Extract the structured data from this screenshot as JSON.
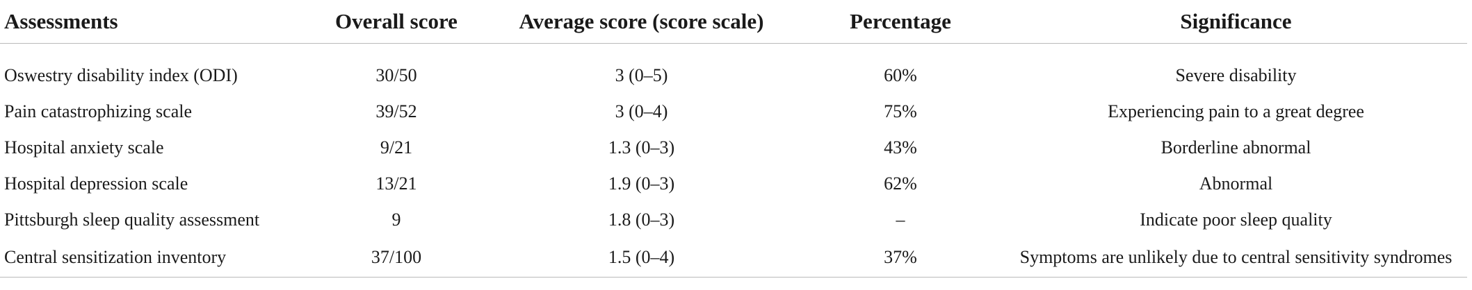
{
  "table": {
    "headers": [
      "Assessments",
      "Overall score",
      "Average score (score scale)",
      "Percentage",
      "Significance"
    ],
    "rows": [
      [
        "Oswestry disability index (ODI)",
        "30/50",
        "3 (0–5)",
        "60%",
        "Severe disability"
      ],
      [
        "Pain catastrophizing scale",
        "39/52",
        "3 (0–4)",
        "75%",
        "Experiencing pain to a great degree"
      ],
      [
        "Hospital anxiety scale",
        "9/21",
        "1.3 (0–3)",
        "43%",
        "Borderline abnormal"
      ],
      [
        "Hospital depression scale",
        "13/21",
        "1.9 (0–3)",
        "62%",
        "Abnormal"
      ],
      [
        "Pittsburgh sleep quality assessment",
        "9",
        "1.8 (0–3)",
        "–",
        "Indicate poor sleep quality"
      ],
      [
        "Central sensitization inventory",
        "37/100",
        "1.5 (0–4)",
        "37%",
        "Symptoms are unlikely due to central sensitivity syndromes"
      ]
    ]
  }
}
